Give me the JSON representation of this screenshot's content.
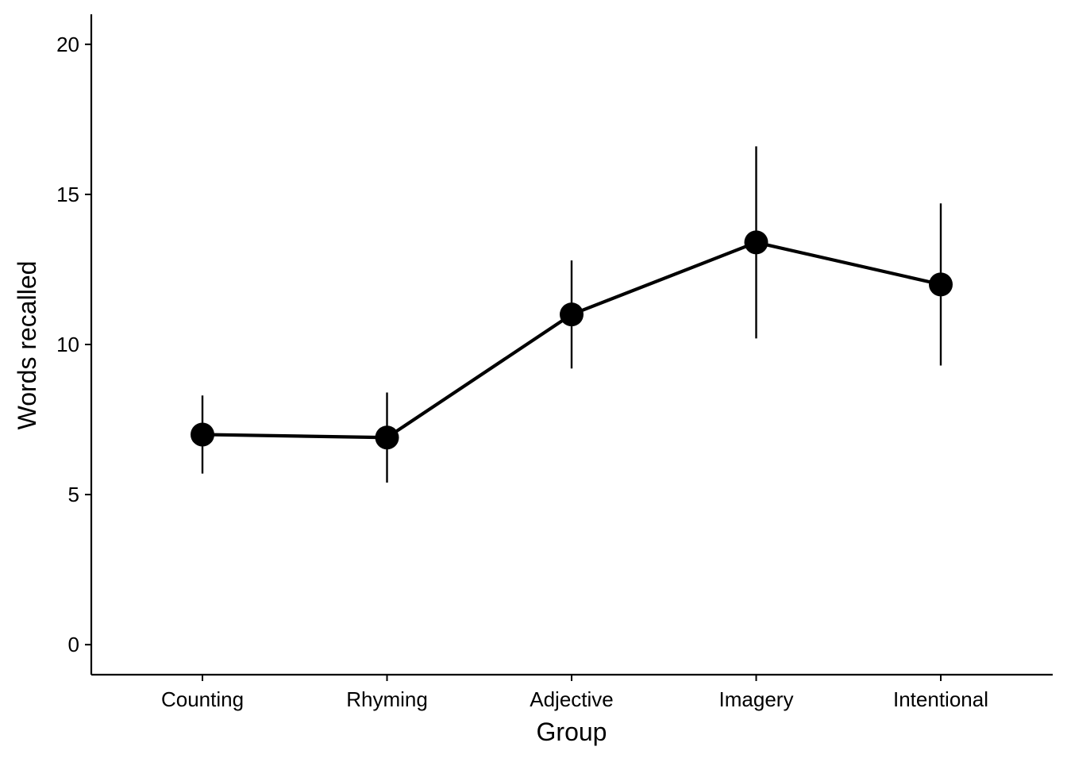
{
  "chart_data": {
    "type": "line",
    "title": "",
    "xlabel": "Group",
    "ylabel": "Words recalled",
    "categories": [
      "Counting",
      "Rhyming",
      "Adjective",
      "Imagery",
      "Intentional"
    ],
    "series": [
      {
        "name": "Words recalled",
        "values": [
          7.0,
          6.9,
          11.0,
          13.4,
          12.0
        ],
        "error_low": [
          5.7,
          5.4,
          9.2,
          10.2,
          9.3
        ],
        "error_high": [
          8.3,
          8.4,
          12.8,
          16.6,
          14.7
        ]
      }
    ],
    "yticks": [
      0,
      5,
      10,
      15,
      20
    ],
    "ytick_labels": [
      "0",
      "5",
      "10",
      "15",
      "20"
    ],
    "ylim": [
      -1,
      21
    ],
    "grid": false,
    "legend": "none",
    "color": "#000000"
  }
}
